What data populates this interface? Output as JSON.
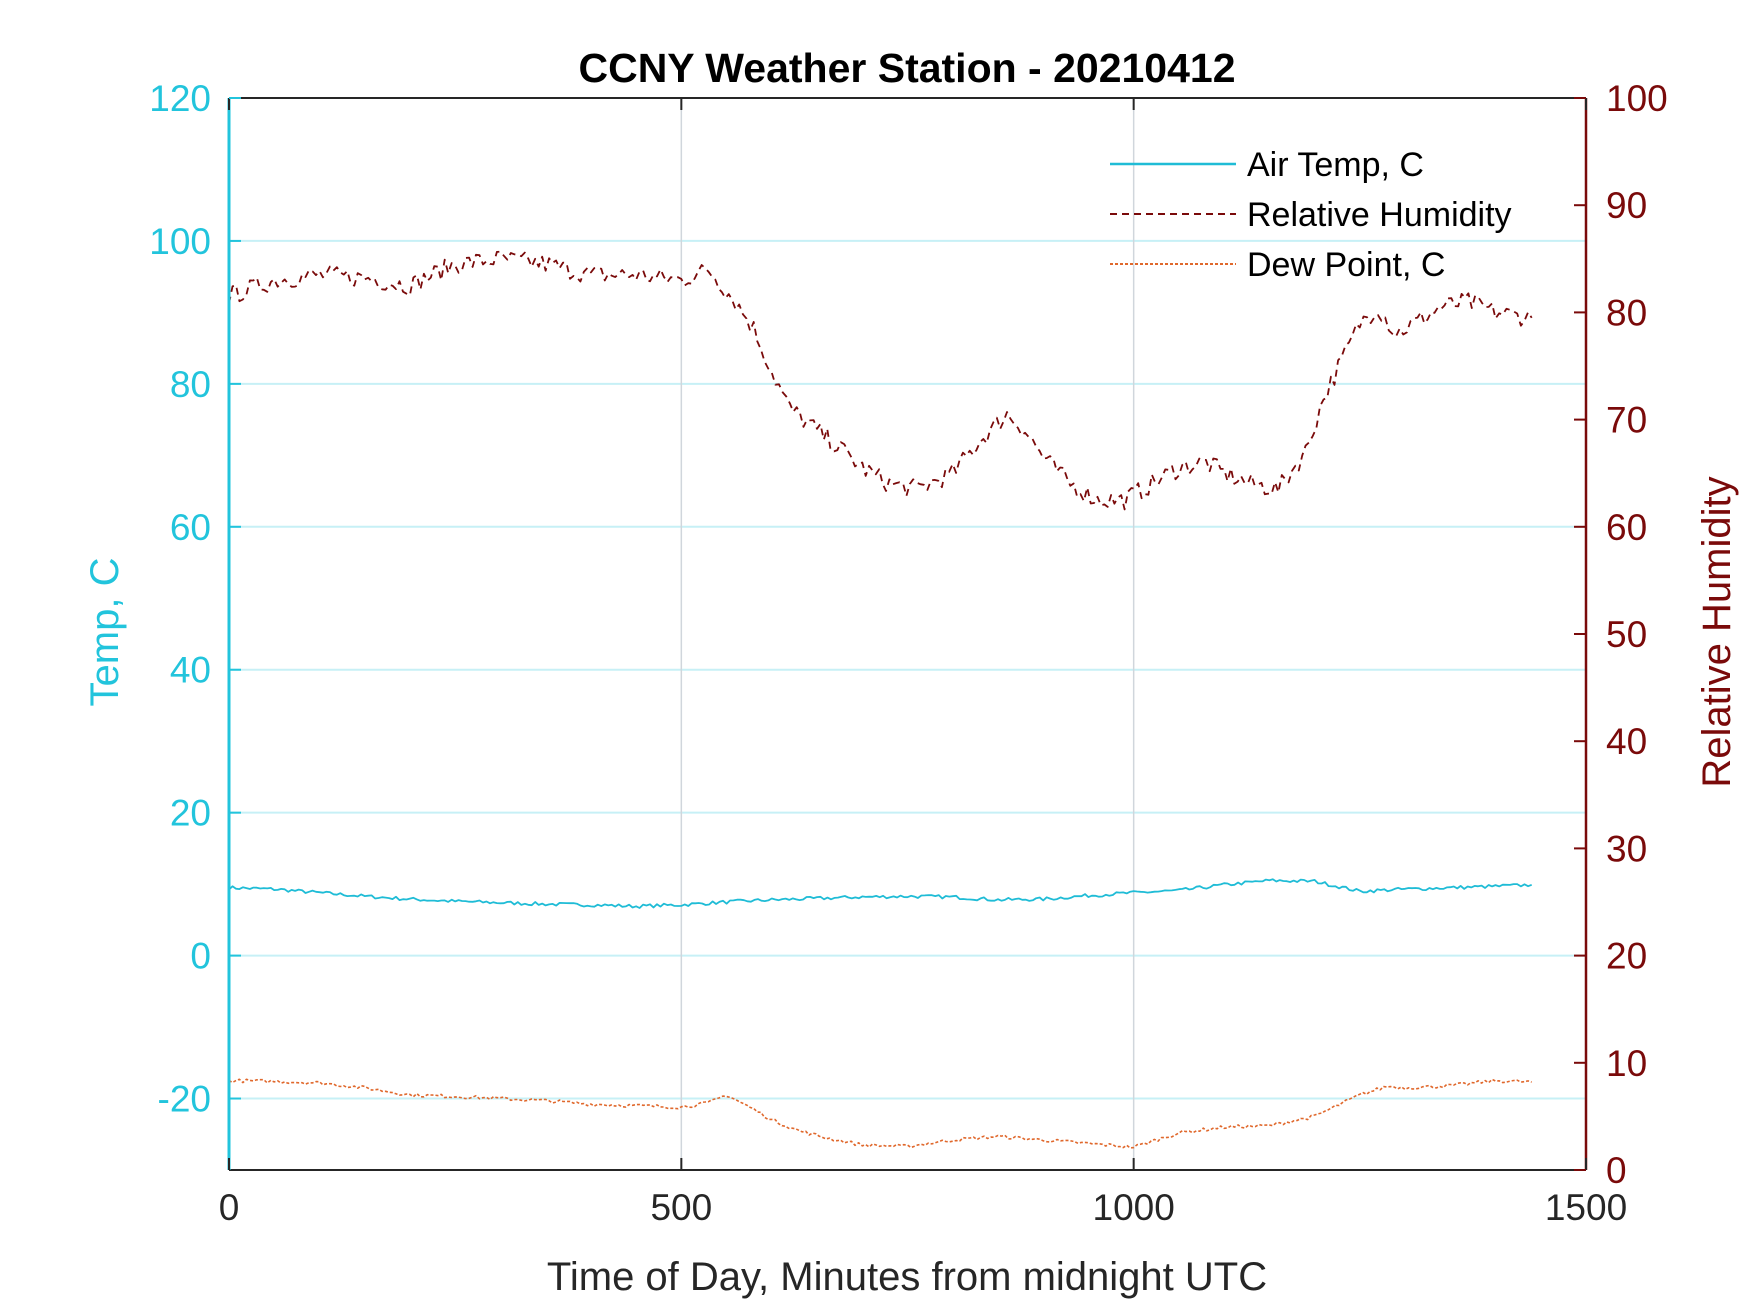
{
  "chart_data": {
    "type": "line",
    "title": "CCNY Weather Station - 20210412",
    "xlabel": "Time of Day, Minutes from midnight UTC",
    "ylabel_left": "Temp, C",
    "ylabel_right": "Relative Humidity",
    "xlim": [
      0,
      1500
    ],
    "ylim_left": [
      -30,
      120
    ],
    "ylim_right": [
      0,
      100
    ],
    "x_ticks": [
      "0",
      "500",
      "1000",
      "1500"
    ],
    "x_tick_values": [
      0,
      500,
      1000,
      1500
    ],
    "y_left_ticks": [
      "120",
      "100",
      "80",
      "60",
      "40",
      "20",
      "0",
      "-20"
    ],
    "y_left_tick_values": [
      120,
      100,
      80,
      60,
      40,
      20,
      0,
      -20
    ],
    "y_right_ticks": [
      "100",
      "90",
      "80",
      "70",
      "60",
      "50",
      "40",
      "30",
      "20",
      "10",
      "0"
    ],
    "y_right_tick_values": [
      100,
      90,
      80,
      70,
      60,
      50,
      40,
      30,
      20,
      10,
      0
    ],
    "grid": true,
    "legend_position": "top-right",
    "colors": {
      "left_axis": "#22c4dc",
      "right_axis": "#7a0a0a",
      "air_temp": "#1fbcd6",
      "humidity": "#7a0a0a",
      "dew_point": "#e0682c",
      "gridline": "#c7f0f6",
      "vgrid": "#d0d6dc"
    },
    "series": [
      {
        "name": "Air Temp, C",
        "axis": "left",
        "style": "solid",
        "x": [
          0,
          50,
          100,
          150,
          200,
          250,
          300,
          350,
          400,
          450,
          500,
          550,
          600,
          650,
          700,
          750,
          800,
          850,
          900,
          950,
          1000,
          1050,
          1100,
          1150,
          1200,
          1250,
          1300,
          1350,
          1400,
          1440
        ],
        "values": [
          9.5,
          9.3,
          8.8,
          8.3,
          7.9,
          7.6,
          7.4,
          7.2,
          7.1,
          6.9,
          7.1,
          7.5,
          7.8,
          8.0,
          8.2,
          8.3,
          8.2,
          7.8,
          7.9,
          8.4,
          8.8,
          9.1,
          9.9,
          10.5,
          10.4,
          9.0,
          9.3,
          9.5,
          9.7,
          9.9
        ]
      },
      {
        "name": "Relative Humidity",
        "axis": "right",
        "style": "dashed",
        "x": [
          0,
          50,
          100,
          150,
          200,
          250,
          300,
          350,
          400,
          450,
          500,
          530,
          560,
          580,
          600,
          620,
          650,
          680,
          700,
          730,
          760,
          800,
          830,
          860,
          880,
          900,
          930,
          960,
          990,
          1020,
          1050,
          1080,
          1100,
          1130,
          1160,
          1190,
          1210,
          1230,
          1250,
          1270,
          1290,
          1310,
          1340,
          1370,
          1400,
          1440
        ],
        "values": [
          81.5,
          83,
          83.5,
          83.2,
          82.5,
          84.5,
          85,
          84.5,
          83.5,
          83.5,
          83,
          84,
          81,
          78.5,
          74.5,
          71,
          69,
          67,
          65.5,
          64,
          63.5,
          65,
          68,
          70.5,
          69,
          66.5,
          64,
          62.5,
          62.5,
          64,
          65.5,
          66,
          65,
          64,
          63.5,
          67,
          72,
          75.5,
          79,
          80.5,
          78,
          79,
          80.5,
          81,
          80,
          79.5
        ]
      },
      {
        "name": "Dew Point, C",
        "axis": "left",
        "style": "dotted",
        "x": [
          0,
          50,
          100,
          150,
          200,
          250,
          300,
          350,
          400,
          450,
          500,
          530,
          550,
          580,
          600,
          630,
          660,
          700,
          750,
          800,
          850,
          900,
          950,
          1000,
          1050,
          1100,
          1150,
          1200,
          1250,
          1280,
          1300,
          1350,
          1400,
          1440
        ],
        "values": [
          -17.5,
          -17.6,
          -17.8,
          -18.5,
          -19.5,
          -19.7,
          -20,
          -20.3,
          -20.8,
          -21,
          -21.2,
          -20.6,
          -19.5,
          -21.5,
          -23,
          -24.5,
          -25.5,
          -26.5,
          -26.7,
          -25.8,
          -25.3,
          -25.8,
          -26.3,
          -26.8,
          -24.8,
          -24,
          -23.8,
          -22.5,
          -19.5,
          -18.3,
          -18.5,
          -18.2,
          -17.5,
          -17.7
        ]
      }
    ]
  }
}
